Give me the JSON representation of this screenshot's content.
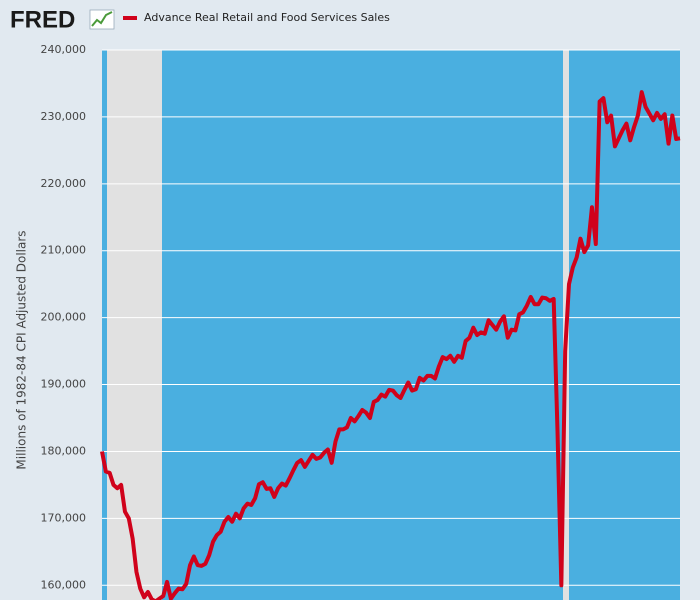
{
  "chart_data": {
    "type": "line",
    "logo": "FRED",
    "ylabel": "Millions of 1982-84 CPI Adjusted Dollars",
    "ylim": [
      157800,
      240000
    ],
    "yticks": [
      {
        "value": 160000,
        "label": "160,000"
      },
      {
        "value": 170000,
        "label": "170,000"
      },
      {
        "value": 180000,
        "label": "180,000"
      },
      {
        "value": 190000,
        "label": "190,000"
      },
      {
        "value": 200000,
        "label": "200,000"
      },
      {
        "value": 210000,
        "label": "210,000"
      },
      {
        "value": 220000,
        "label": "220,000"
      },
      {
        "value": 230000,
        "label": "230,000"
      },
      {
        "value": 240000,
        "label": "240,000"
      }
    ],
    "grid": true,
    "series": [
      {
        "name": "Advance Real Retail and Food Services Sales",
        "color": "#d0021b",
        "values": [
          180000,
          177000,
          176800,
          175000,
          174500,
          175000,
          171000,
          170000,
          167000,
          162000,
          159500,
          158200,
          159000,
          157900,
          157600,
          158000,
          158400,
          160500,
          158000,
          158800,
          159500,
          159400,
          160200,
          163000,
          164300,
          163000,
          162900,
          163200,
          164500,
          166500,
          167500,
          168000,
          169500,
          170200,
          169500,
          170700,
          170000,
          171500,
          172200,
          172000,
          173000,
          175100,
          175400,
          174400,
          174500,
          173200,
          174500,
          175200,
          174900,
          176000,
          177200,
          178300,
          178700,
          177700,
          178600,
          179500,
          178900,
          179100,
          179800,
          180300,
          178300,
          181500,
          183300,
          183300,
          183600,
          185000,
          184500,
          185300,
          186200,
          185800,
          185000,
          187400,
          187700,
          188500,
          188200,
          189200,
          189100,
          188400,
          188000,
          189200,
          190300,
          189100,
          189300,
          191000,
          190600,
          191300,
          191300,
          190900,
          192700,
          194100,
          193800,
          194300,
          193400,
          194300,
          194000,
          196500,
          197000,
          198500,
          197400,
          197800,
          197600,
          199600,
          198900,
          198200,
          199400,
          200200,
          197000,
          198200,
          198100,
          200500,
          200800,
          201800,
          203100,
          202000,
          202000,
          203000,
          202900,
          202500,
          202800,
          183000,
          160000,
          195000,
          205000,
          207500,
          209000,
          211800,
          209800,
          210800,
          216500,
          211000,
          232300,
          232800,
          229200,
          230200,
          225600,
          226800,
          228000,
          229000,
          226500,
          228500,
          230200,
          233700,
          231500,
          230500,
          229500,
          230600,
          229700,
          230400,
          226000,
          230200,
          226700,
          226800
        ]
      }
    ]
  }
}
